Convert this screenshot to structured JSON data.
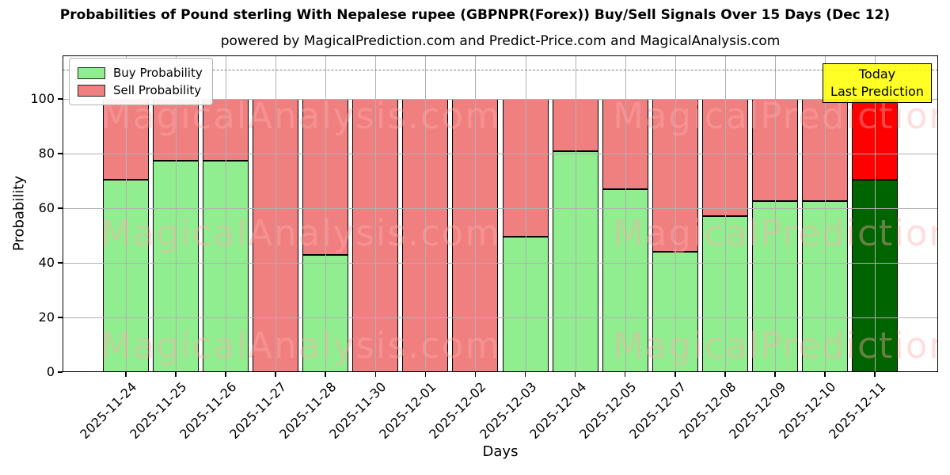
{
  "title": "Probabilities of Pound sterling With Nepalese rupee (GBPNPR(Forex)) Buy/Sell Signals Over 15 Days (Dec 12)",
  "subtitle": "powered by MagicalPrediction.com and Predict-Price.com and MagicalAnalysis.com",
  "legend": {
    "buy_label": "Buy Probability",
    "sell_label": "Sell Probability"
  },
  "annotation": {
    "line1": "Today",
    "line2": "Last Prediction"
  },
  "watermark": {
    "texts": [
      "MagicalAnalysis.com",
      "MagicalPrediction.com"
    ]
  },
  "colors": {
    "buy": "#90ee90",
    "sell": "#f08080",
    "highlight_buy": "#006400",
    "highlight_sell": "#ff0000",
    "grid": "#b0b0b0",
    "dashed_line": "#7f7f7f",
    "annotation_bg": "rgba(255,255,0,0.85)",
    "watermark": "rgba(255,170,170,0.4)"
  },
  "chart_data": {
    "type": "bar",
    "stacked": true,
    "title": "Probabilities of Pound sterling With Nepalese rupee (GBPNPR(Forex)) Buy/Sell Signals Over 15 Days (Dec 12)",
    "xlabel": "Days",
    "ylabel": "Probability",
    "categories": [
      "2025-11-24",
      "2025-11-25",
      "2025-11-26",
      "2025-11-27",
      "2025-11-28",
      "2025-11-30",
      "2025-12-01",
      "2025-12-02",
      "2025-12-03",
      "2025-12-04",
      "2025-12-05",
      "2025-12-07",
      "2025-12-08",
      "2025-12-09",
      "2025-12-10",
      "2025-12-11"
    ],
    "series": [
      {
        "name": "Buy Probability",
        "color": "#90ee90",
        "values": [
          70.5,
          77.5,
          77.5,
          0,
          43,
          0,
          0,
          0,
          49.5,
          81,
          67,
          44,
          57,
          62.5,
          62.5,
          70.5
        ]
      },
      {
        "name": "Sell Probability",
        "color": "#f08080",
        "values": [
          29.5,
          22.5,
          22.5,
          100,
          57,
          100,
          100,
          100,
          50.5,
          19,
          33,
          56,
          43,
          37.5,
          37.5,
          29.5
        ]
      }
    ],
    "highlight_last": {
      "buy_color": "#006400",
      "sell_color": "#ff0000",
      "note": "Today / Last Prediction"
    },
    "yticks": [
      0,
      20,
      40,
      60,
      80,
      100
    ],
    "ylim": [
      0,
      116
    ],
    "dashed_line_y": 110.7,
    "grid": true,
    "legend_position": "upper left"
  }
}
